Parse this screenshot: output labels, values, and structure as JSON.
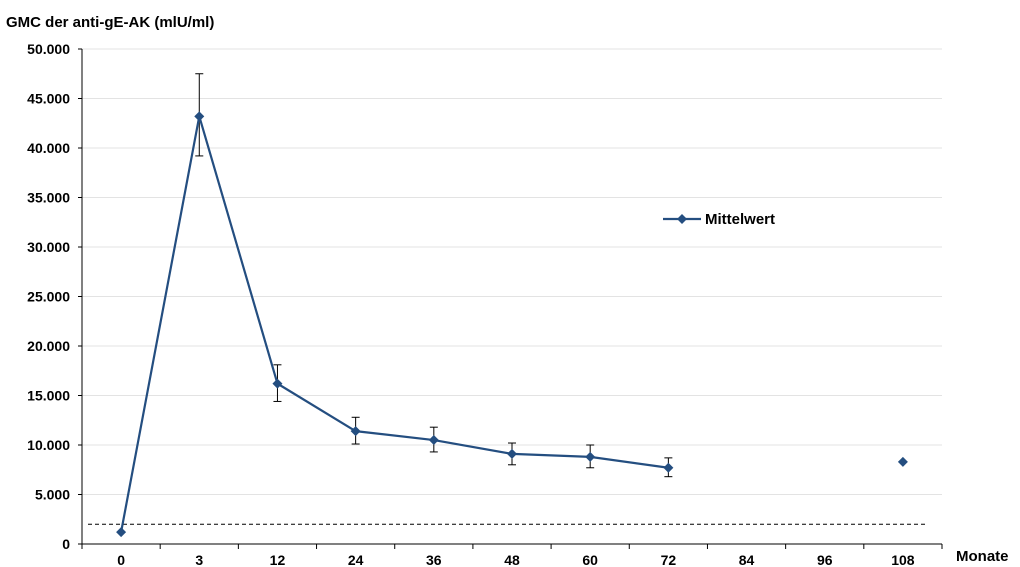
{
  "chart_data": {
    "type": "line",
    "ylabel": "GMC der anti-gE-AK (mlU/ml)",
    "xlabel": "Monate",
    "categories": [
      "0",
      "3",
      "12",
      "24",
      "36",
      "48",
      "60",
      "72",
      "84",
      "96",
      "108"
    ],
    "y_ticks": [
      "0",
      "5.000",
      "10.000",
      "15.000",
      "20.000",
      "25.000",
      "30.000",
      "35.000",
      "40.000",
      "45.000",
      "50.000"
    ],
    "ylim": [
      0,
      50000
    ],
    "grid": true,
    "legend_position": "top-right",
    "threshold_line": 2000,
    "series": [
      {
        "name": "Mittelwert",
        "color": "#244e80",
        "marker": "diamond",
        "values": [
          1200,
          43200,
          16200,
          11400,
          10500,
          9100,
          8800,
          7700,
          null,
          null,
          8300
        ],
        "error_low": [
          null,
          39200,
          14400,
          10100,
          9300,
          8000,
          7700,
          6800,
          null,
          null,
          null
        ],
        "error_high": [
          null,
          47500,
          18100,
          12800,
          11800,
          10200,
          10000,
          8700,
          null,
          null,
          null
        ]
      }
    ]
  }
}
